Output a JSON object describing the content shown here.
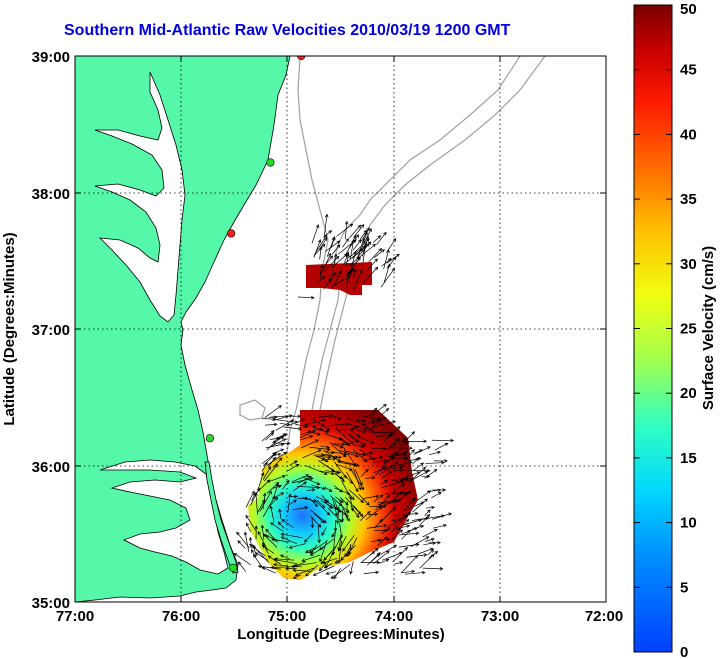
{
  "title": "Southern Mid-Atlantic Raw Velocities 2010/03/19 1200 GMT",
  "xlabel": "Longitude (Degrees:Minutes)",
  "ylabel": "Latitude (Degrees:Minutes)",
  "colorbar_label": "Surface Velocity (cm/s)",
  "x_ticks": [
    "77:00",
    "76:00",
    "75:00",
    "74:00",
    "73:00",
    "72:00"
  ],
  "y_ticks": [
    "39:00",
    "38:00",
    "37:00",
    "36:00",
    "35:00"
  ],
  "colorbar_ticks": [
    "50",
    "45",
    "40",
    "35",
    "30",
    "25",
    "20",
    "15",
    "10",
    "5",
    "0"
  ],
  "colors": {
    "land": "#55f7a8",
    "coast": "#000000",
    "bathymetry": "#a0a0a0",
    "grid": "#000000",
    "title": "#0000e0",
    "station_green": "#22dd22",
    "station_red": "#ee2222"
  },
  "chart_data": {
    "type": "heatmap",
    "xlim_deg_west": [
      77,
      72
    ],
    "ylim_deg_north": [
      35,
      39
    ],
    "clim_cm_s": [
      0,
      50
    ],
    "colormap": "jet",
    "stations": [
      {
        "lon": 74.87,
        "lat": 39.0,
        "color": "red"
      },
      {
        "lon": 75.16,
        "lat": 38.22,
        "color": "green"
      },
      {
        "lon": 75.53,
        "lat": 37.7,
        "color": "red"
      },
      {
        "lon": 75.73,
        "lat": 36.2,
        "color": "green"
      },
      {
        "lon": 75.51,
        "lat": 35.25,
        "color": "green"
      }
    ]
  }
}
